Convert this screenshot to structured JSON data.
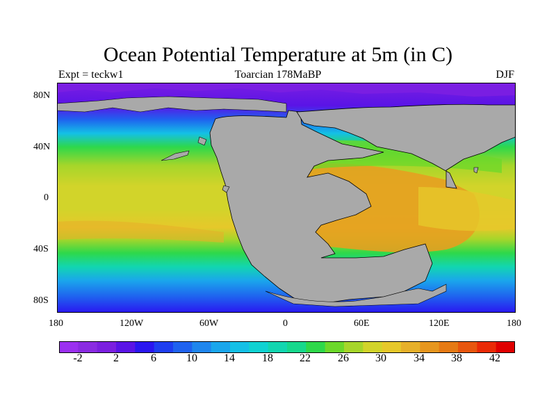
{
  "title": "Ocean Potential Temperature at 5m (in C)",
  "left_subtitle": "Expt = teckw1",
  "center_subtitle": "Toarcian 178MaBP",
  "right_subtitle": "DJF",
  "y_ticks": [
    "80N",
    "40N",
    "0",
    "40S",
    "80S"
  ],
  "x_ticks": [
    "180",
    "120W",
    "60W",
    "0",
    "60E",
    "120E",
    "180"
  ],
  "colorbar": {
    "labels": [
      "-2",
      "2",
      "6",
      "10",
      "14",
      "18",
      "22",
      "26",
      "30",
      "34",
      "38",
      "42"
    ],
    "colors": [
      "#9b30f0",
      "#8a2be2",
      "#7b1fe0",
      "#5a14e6",
      "#2a16f0",
      "#1e3ef0",
      "#1f62ef",
      "#1f86ee",
      "#1aa6ec",
      "#14c0e6",
      "#10d2d2",
      "#12d6b0",
      "#16d88c",
      "#2ed84a",
      "#6cd82a",
      "#a6d62a",
      "#d2d42a",
      "#e6c82a",
      "#e6b02a",
      "#e6961e",
      "#e67a14",
      "#e8560e",
      "#ea2a06",
      "#e00000"
    ]
  },
  "colors": {
    "land": "#a9a9a9",
    "coast": "#000000"
  }
}
